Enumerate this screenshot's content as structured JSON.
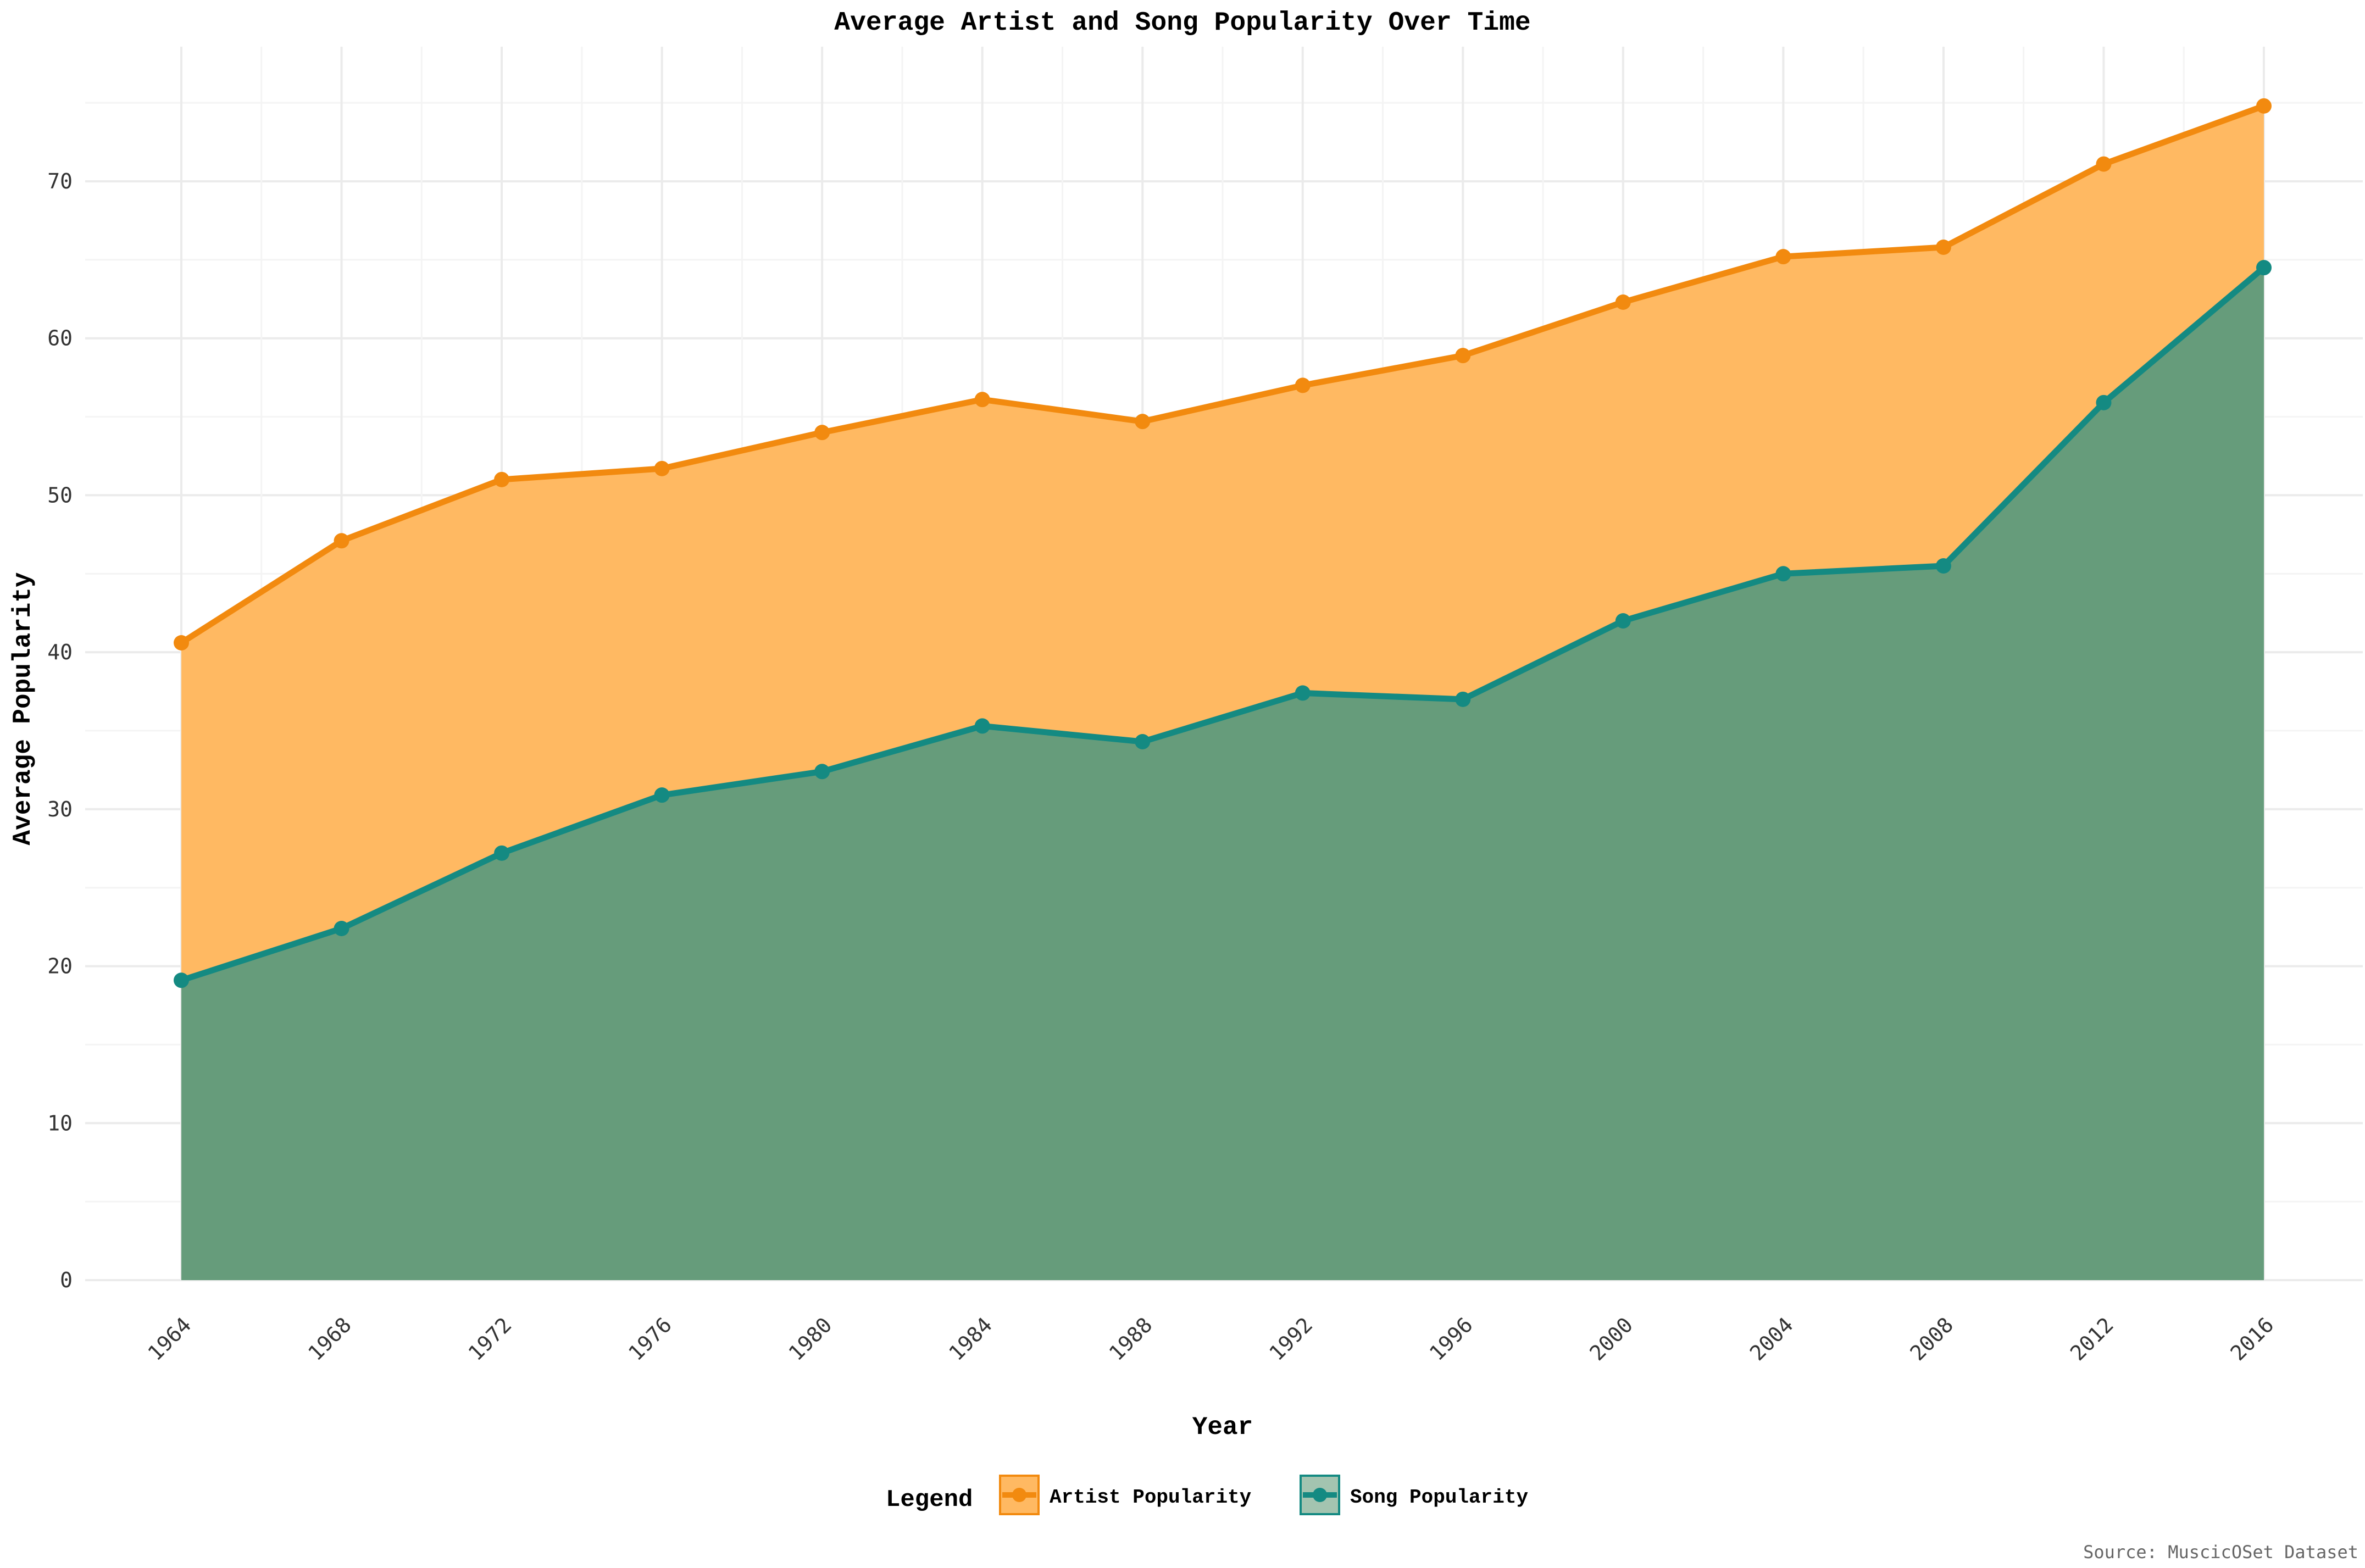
{
  "chart_data": {
    "type": "area",
    "title": "Average Artist and Song Popularity Over Time",
    "xlabel": "Year",
    "ylabel": "Average Popularity",
    "x": [
      1964,
      1968,
      1972,
      1976,
      1980,
      1984,
      1988,
      1992,
      1996,
      2000,
      2004,
      2008,
      2012,
      2016
    ],
    "xlim": [
      1964,
      2016
    ],
    "ylim": [
      0,
      77
    ],
    "yticks": [
      0,
      10,
      20,
      30,
      40,
      50,
      60,
      70
    ],
    "series": [
      {
        "name": "Artist Popularity",
        "values": [
          40.6,
          47.1,
          51.0,
          51.7,
          54.0,
          56.1,
          54.7,
          57.0,
          58.9,
          62.3,
          65.2,
          65.8,
          71.1,
          74.8
        ],
        "line_color": "#f28a0f",
        "fill_color": "#ffb962"
      },
      {
        "name": "Song Popularity",
        "values": [
          19.1,
          22.4,
          27.2,
          30.9,
          32.4,
          35.3,
          34.3,
          37.4,
          37.0,
          42.0,
          45.0,
          45.5,
          55.9,
          64.5
        ],
        "line_color": "#148a82",
        "fill_color": "#669c7b"
      }
    ],
    "legend": {
      "title": "Legend",
      "position": "bottom"
    },
    "grid": true,
    "caption": "Source: MuscicOSet Dataset"
  }
}
